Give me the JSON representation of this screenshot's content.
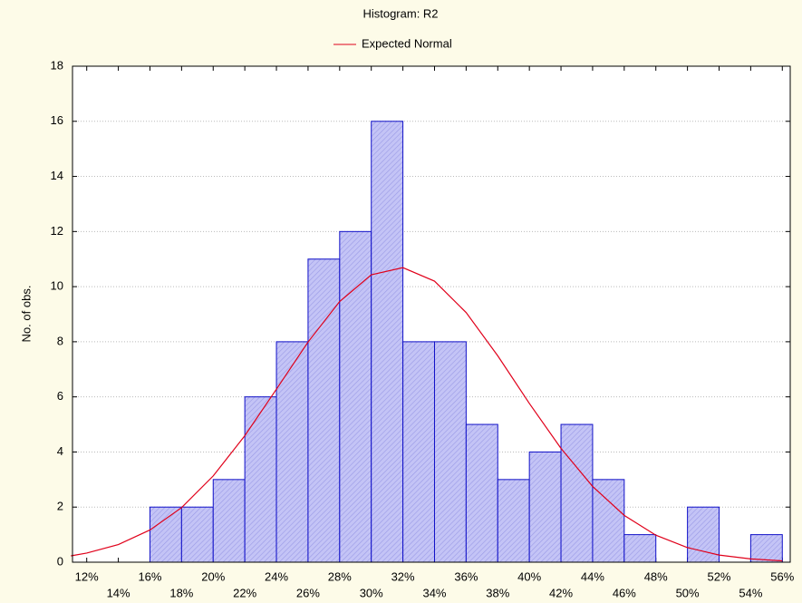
{
  "chart_data": {
    "type": "histogram",
    "title": "Histogram: R2",
    "ylabel": "No. of obs.",
    "bins": [
      16,
      18,
      20,
      22,
      24,
      26,
      28,
      30,
      32,
      34,
      36,
      38,
      40,
      42,
      44,
      46,
      48,
      50,
      52,
      54,
      56
    ],
    "counts": [
      2,
      2,
      3,
      6,
      8,
      11,
      12,
      16,
      8,
      8,
      5,
      3,
      4,
      5,
      3,
      1,
      0,
      2,
      0,
      1
    ],
    "color": "#b8b8f4",
    "edgecolor": "#1010c8",
    "line": {
      "name": "Expected Normal",
      "color": "#e0001a",
      "x": [
        11,
        12,
        14,
        16,
        18,
        20,
        22,
        24,
        26,
        28,
        30,
        32,
        34,
        36,
        38,
        40,
        42,
        44,
        46,
        48,
        50,
        52,
        54,
        56
      ],
      "values": [
        0.23,
        0.33,
        0.64,
        1.17,
        1.98,
        3.13,
        4.59,
        6.28,
        7.99,
        9.46,
        10.43,
        10.69,
        10.2,
        9.06,
        7.49,
        5.76,
        4.13,
        2.75,
        1.7,
        0.98,
        0.53,
        0.26,
        0.12,
        0.05
      ]
    },
    "xlim": [
      11.1,
      56.5
    ],
    "ylim": [
      0,
      18
    ],
    "xticks": [
      {
        "value": 12,
        "label": "12%"
      },
      {
        "value": 14,
        "label": "14%"
      },
      {
        "value": 16,
        "label": "16%"
      },
      {
        "value": 18,
        "label": "18%"
      },
      {
        "value": 20,
        "label": "20%"
      },
      {
        "value": 22,
        "label": "22%"
      },
      {
        "value": 24,
        "label": "24%"
      },
      {
        "value": 26,
        "label": "26%"
      },
      {
        "value": 28,
        "label": "28%"
      },
      {
        "value": 30,
        "label": "30%"
      },
      {
        "value": 32,
        "label": "32%"
      },
      {
        "value": 34,
        "label": "34%"
      },
      {
        "value": 36,
        "label": "36%"
      },
      {
        "value": 38,
        "label": "38%"
      },
      {
        "value": 40,
        "label": "40%"
      },
      {
        "value": 42,
        "label": "42%"
      },
      {
        "value": 44,
        "label": "44%"
      },
      {
        "value": 46,
        "label": "46%"
      },
      {
        "value": 48,
        "label": "48%"
      },
      {
        "value": 50,
        "label": "50%"
      },
      {
        "value": 52,
        "label": "52%"
      },
      {
        "value": 54,
        "label": "54%"
      },
      {
        "value": 56,
        "label": "56%"
      }
    ],
    "yticks": [
      0,
      2,
      4,
      6,
      8,
      10,
      12,
      14,
      16,
      18
    ],
    "grid": true
  }
}
